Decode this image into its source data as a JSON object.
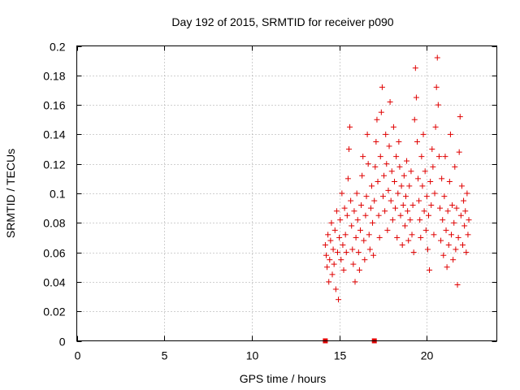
{
  "chart_data": {
    "type": "scatter",
    "title": "Day 192 of 2015, SRMTID for receiver p090",
    "xlabel": "GPS time / hours",
    "ylabel": "SRMTID / TECUs",
    "xlim": [
      0,
      24
    ],
    "ylim": [
      0,
      0.2
    ],
    "xticks": [
      0,
      5,
      10,
      15,
      20
    ],
    "yticks": [
      0,
      0.02,
      0.04,
      0.06,
      0.08,
      0.1,
      0.12,
      0.14,
      0.16,
      0.18,
      0.2
    ],
    "xtick_labels": [
      "0",
      "5",
      "10",
      "15",
      "20"
    ],
    "ytick_labels": [
      "0",
      "0.02",
      "0.04",
      "0.06",
      "0.08",
      "0.1",
      "0.12",
      "0.14",
      "0.16",
      "0.18",
      "0.2"
    ],
    "grid": true,
    "marker": "+",
    "color": "#e00000",
    "zero_markers": [
      {
        "x": 14.2,
        "y": 0
      },
      {
        "x": 17.0,
        "y": 0
      }
    ],
    "series": [
      {
        "name": "SRMTID",
        "points": [
          [
            14.2,
            0.065
          ],
          [
            14.25,
            0.058
          ],
          [
            14.3,
            0.05
          ],
          [
            14.35,
            0.072
          ],
          [
            14.4,
            0.04
          ],
          [
            14.45,
            0.055
          ],
          [
            14.5,
            0.068
          ],
          [
            14.55,
            0.08
          ],
          [
            14.6,
            0.045
          ],
          [
            14.65,
            0.062
          ],
          [
            14.7,
            0.052
          ],
          [
            14.75,
            0.075
          ],
          [
            14.8,
            0.035
          ],
          [
            14.85,
            0.088
          ],
          [
            14.9,
            0.06
          ],
          [
            14.95,
            0.028
          ],
          [
            15.0,
            0.07
          ],
          [
            15.05,
            0.082
          ],
          [
            15.1,
            0.055
          ],
          [
            15.15,
            0.1
          ],
          [
            15.2,
            0.065
          ],
          [
            15.25,
            0.048
          ],
          [
            15.3,
            0.09
          ],
          [
            15.35,
            0.072
          ],
          [
            15.4,
            0.06
          ],
          [
            15.45,
            0.085
          ],
          [
            15.5,
            0.11
          ],
          [
            15.55,
            0.13
          ],
          [
            15.6,
            0.145
          ],
          [
            15.65,
            0.095
          ],
          [
            15.7,
            0.078
          ],
          [
            15.75,
            0.062
          ],
          [
            15.8,
            0.052
          ],
          [
            15.85,
            0.088
          ],
          [
            15.9,
            0.04
          ],
          [
            15.95,
            0.07
          ],
          [
            16.0,
            0.1
          ],
          [
            16.05,
            0.082
          ],
          [
            16.1,
            0.06
          ],
          [
            16.15,
            0.048
          ],
          [
            16.2,
            0.075
          ],
          [
            16.25,
            0.092
          ],
          [
            16.3,
            0.112
          ],
          [
            16.35,
            0.125
          ],
          [
            16.4,
            0.068
          ],
          [
            16.45,
            0.055
          ],
          [
            16.5,
            0.085
          ],
          [
            16.55,
            0.098
          ],
          [
            16.6,
            0.14
          ],
          [
            16.65,
            0.12
          ],
          [
            16.7,
            0.072
          ],
          [
            16.75,
            0.062
          ],
          [
            16.8,
            0.09
          ],
          [
            16.85,
            0.105
          ],
          [
            16.9,
            0.08
          ],
          [
            16.95,
            0.058
          ],
          [
            17.0,
            0.095
          ],
          [
            17.05,
            0.118
          ],
          [
            17.1,
            0.135
          ],
          [
            17.15,
            0.15
          ],
          [
            17.2,
            0.108
          ],
          [
            17.25,
            0.085
          ],
          [
            17.3,
            0.07
          ],
          [
            17.35,
            0.125
          ],
          [
            17.4,
            0.155
          ],
          [
            17.45,
            0.172
          ],
          [
            17.5,
            0.098
          ],
          [
            17.55,
            0.112
          ],
          [
            17.6,
            0.088
          ],
          [
            17.65,
            0.14
          ],
          [
            17.7,
            0.12
          ],
          [
            17.75,
            0.075
          ],
          [
            17.8,
            0.102
          ],
          [
            17.85,
            0.132
          ],
          [
            17.9,
            0.162
          ],
          [
            17.95,
            0.095
          ],
          [
            18.0,
            0.115
          ],
          [
            18.05,
            0.082
          ],
          [
            18.1,
            0.145
          ],
          [
            18.15,
            0.108
          ],
          [
            18.2,
            0.09
          ],
          [
            18.25,
            0.125
          ],
          [
            18.3,
            0.07
          ],
          [
            18.35,
            0.1
          ],
          [
            18.4,
            0.135
          ],
          [
            18.45,
            0.118
          ],
          [
            18.5,
            0.085
          ],
          [
            18.55,
            0.105
          ],
          [
            18.6,
            0.065
          ],
          [
            18.65,
            0.092
          ],
          [
            18.7,
            0.112
          ],
          [
            18.75,
            0.078
          ],
          [
            18.8,
            0.098
          ],
          [
            18.85,
            0.122
          ],
          [
            18.9,
            0.088
          ],
          [
            18.95,
            0.068
          ],
          [
            19.0,
            0.105
          ],
          [
            19.05,
            0.082
          ],
          [
            19.1,
            0.115
          ],
          [
            19.15,
            0.072
          ],
          [
            19.2,
            0.092
          ],
          [
            19.25,
            0.06
          ],
          [
            19.3,
            0.15
          ],
          [
            19.35,
            0.185
          ],
          [
            19.4,
            0.165
          ],
          [
            19.45,
            0.135
          ],
          [
            19.5,
            0.11
          ],
          [
            19.55,
            0.095
          ],
          [
            19.6,
            0.082
          ],
          [
            19.65,
            0.07
          ],
          [
            19.7,
            0.125
          ],
          [
            19.75,
            0.105
          ],
          [
            19.8,
            0.14
          ],
          [
            19.85,
            0.088
          ],
          [
            19.9,
            0.115
          ],
          [
            19.95,
            0.075
          ],
          [
            20.0,
            0.098
          ],
          [
            20.05,
            0.062
          ],
          [
            20.1,
            0.085
          ],
          [
            20.15,
            0.048
          ],
          [
            20.2,
            0.108
          ],
          [
            20.25,
            0.092
          ],
          [
            20.3,
            0.13
          ],
          [
            20.35,
            0.118
          ],
          [
            20.4,
            0.072
          ],
          [
            20.45,
            0.1
          ],
          [
            20.5,
            0.145
          ],
          [
            20.55,
            0.172
          ],
          [
            20.6,
            0.192
          ],
          [
            20.65,
            0.16
          ],
          [
            20.7,
            0.125
          ],
          [
            20.75,
            0.09
          ],
          [
            20.8,
            0.068
          ],
          [
            20.85,
            0.11
          ],
          [
            20.9,
            0.082
          ],
          [
            20.95,
            0.058
          ],
          [
            21.0,
            0.098
          ],
          [
            21.05,
            0.125
          ],
          [
            21.1,
            0.075
          ],
          [
            21.15,
            0.05
          ],
          [
            21.2,
            0.088
          ],
          [
            21.25,
            0.065
          ],
          [
            21.3,
            0.108
          ],
          [
            21.35,
            0.14
          ],
          [
            21.4,
            0.072
          ],
          [
            21.45,
            0.092
          ],
          [
            21.5,
            0.055
          ],
          [
            21.55,
            0.08
          ],
          [
            21.6,
            0.118
          ],
          [
            21.65,
            0.062
          ],
          [
            21.7,
            0.09
          ],
          [
            21.75,
            0.038
          ],
          [
            21.8,
            0.07
          ],
          [
            21.85,
            0.128
          ],
          [
            21.9,
            0.152
          ],
          [
            21.95,
            0.085
          ],
          [
            22.0,
            0.105
          ],
          [
            22.05,
            0.065
          ],
          [
            22.1,
            0.095
          ],
          [
            22.15,
            0.078
          ],
          [
            22.2,
            0.088
          ],
          [
            22.25,
            0.06
          ],
          [
            22.3,
            0.1
          ],
          [
            22.35,
            0.072
          ],
          [
            22.4,
            0.082
          ]
        ]
      }
    ]
  }
}
